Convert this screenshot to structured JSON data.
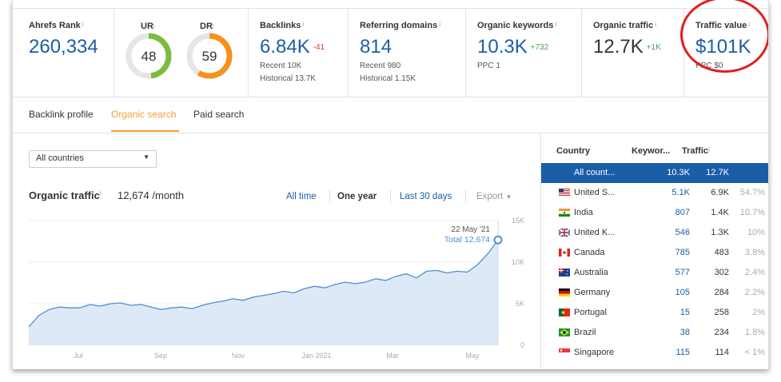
{
  "metrics": {
    "ahrefs_rank": {
      "label": "Ahrefs Rank",
      "value": "260,334"
    },
    "ur": {
      "label": "UR",
      "value": "48",
      "fill_percent": 48,
      "color": "#7cbb3e"
    },
    "dr": {
      "label": "DR",
      "value": "59",
      "fill_percent": 59,
      "color": "#f5921e"
    },
    "backlinks": {
      "label": "Backlinks",
      "value": "6.84K",
      "delta": "-41",
      "recent": "Recent 10K",
      "historical": "Historical 13.7K"
    },
    "referring_domains": {
      "label": "Referring domains",
      "value": "814",
      "recent": "Recent 980",
      "historical": "Historical 1.15K"
    },
    "organic_keywords": {
      "label": "Organic keywords",
      "value": "10.3K",
      "delta": "+732",
      "ppc": "PPC 1"
    },
    "organic_traffic": {
      "label": "Organic traffic",
      "value": "12.7K",
      "delta": "+1K"
    },
    "traffic_value": {
      "label": "Traffic value",
      "value": "$101K",
      "ppc": "PPC $0"
    }
  },
  "tabs": [
    "Backlink profile",
    "Organic search",
    "Paid search"
  ],
  "country_select": "All countries",
  "organic": {
    "title": "Organic traffic",
    "value": "12,674 /month"
  },
  "ranges": {
    "all": "All time",
    "one_year": "One year",
    "last30": "Last 30 days",
    "export": "Export"
  },
  "chart_data": {
    "type": "area",
    "x_ticks": [
      "Jul",
      "Sep",
      "Nov",
      "Jan 2021",
      "Mar",
      "May"
    ],
    "y_ticks": [
      "15K",
      "10K",
      "5K",
      "0"
    ],
    "ylim": [
      0,
      15000
    ],
    "series": [
      {
        "values": [
          2200,
          3600,
          4300,
          4600,
          4500,
          4500,
          4900,
          4700,
          5000,
          5100,
          4800,
          4900,
          4600,
          4300,
          4500,
          4600,
          4400,
          4800,
          5100,
          5300,
          5600,
          5400,
          5800,
          6000,
          6200,
          6500,
          6300,
          6800,
          7100,
          6900,
          7300,
          7600,
          7400,
          7600,
          8000,
          7800,
          8300,
          8600,
          8100,
          8900,
          9000,
          8700,
          8900,
          8800,
          9700,
          11000,
          12674
        ]
      }
    ],
    "tooltip": {
      "date": "22 May '21",
      "total": "Total 12,674"
    },
    "colors": {
      "line": "#4a90d9",
      "fill": "#dde9f7"
    }
  },
  "table": {
    "headers": {
      "country": "Country",
      "keywords": "Keywor...",
      "traffic": "Traffic"
    },
    "rows": [
      {
        "country": "All count...",
        "keywords": "10.3K",
        "traffic": "12.7K",
        "percent": "",
        "flag": "none",
        "selected": true
      },
      {
        "country": "United S...",
        "keywords": "5.1K",
        "traffic": "6.9K",
        "percent": "54.7%",
        "flag": "us-flag"
      },
      {
        "country": "India",
        "keywords": "807",
        "traffic": "1.4K",
        "percent": "10.7%",
        "flag": "india-flag"
      },
      {
        "country": "United K...",
        "keywords": "546",
        "traffic": "1.3K",
        "percent": "10%",
        "flag": "uk-flag"
      },
      {
        "country": "Canada",
        "keywords": "785",
        "traffic": "483",
        "percent": "3.8%",
        "flag": "canada-flag"
      },
      {
        "country": "Australia",
        "keywords": "577",
        "traffic": "302",
        "percent": "2.4%",
        "flag": "australia-flag"
      },
      {
        "country": "Germany",
        "keywords": "105",
        "traffic": "284",
        "percent": "2.2%",
        "flag": "germany-flag"
      },
      {
        "country": "Portugal",
        "keywords": "15",
        "traffic": "258",
        "percent": "2%",
        "flag": "portugal-flag"
      },
      {
        "country": "Brazil",
        "keywords": "38",
        "traffic": "234",
        "percent": "1.8%",
        "flag": "brazil-flag"
      },
      {
        "country": "Singapore",
        "keywords": "115",
        "traffic": "114",
        "percent": "< 1%",
        "flag": "singapore-flag"
      }
    ]
  }
}
